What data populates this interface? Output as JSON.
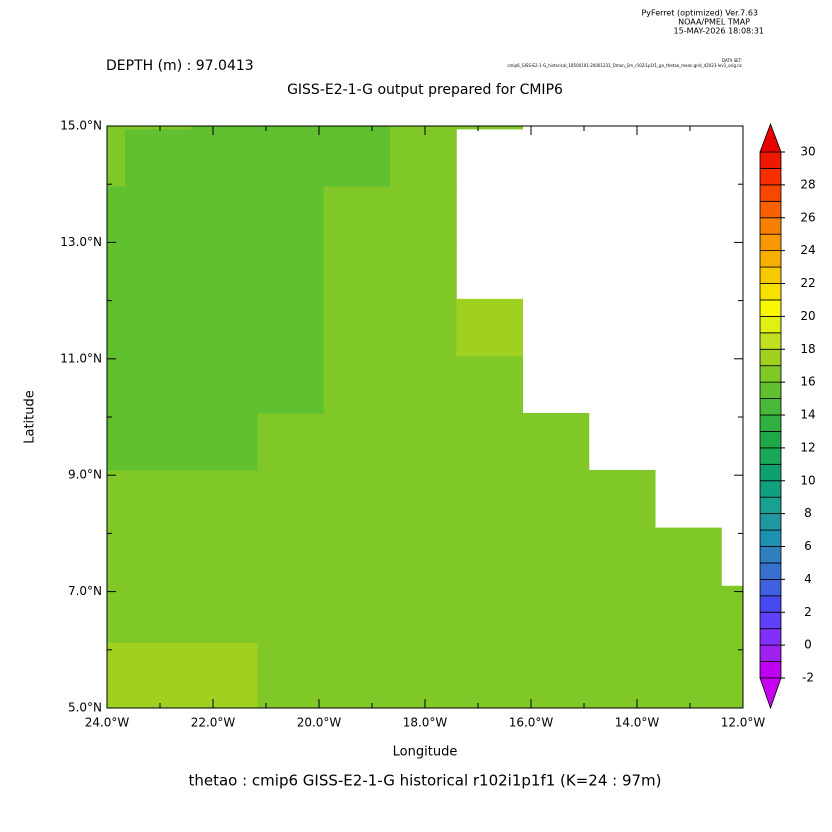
{
  "chart_data": {
    "type": "shade",
    "header": [
      "PyFerret (optimized) Ver.7.63",
      "NOAA/PMEL TMAP",
      "15-MAY-2026 18:08:31"
    ],
    "subtitle": "DEPTH (m) : 97.0413",
    "dataset_label": "DATA SET:",
    "dataset": "cmip6_GISS-E2-1-G_historical_18500101-20001231_Omon_1m_r102i1p1f1_gn_thetao_mean.grid_d2023-lev1_orig.nc",
    "title": "GISS-E2-1-G output prepared for CMIP6",
    "xlabel": "Longitude",
    "ylabel": "Latitude",
    "caption": "thetao : cmip6 GISS-E2-1-G historical r102i1p1f1    (K=24 : 97m)",
    "xlim": [
      -24,
      -12
    ],
    "ylim": [
      5,
      15
    ],
    "xticks": [
      {
        "value": -24,
        "label": "24.0°W"
      },
      {
        "value": -22,
        "label": "22.0°W"
      },
      {
        "value": -20,
        "label": "20.0°W"
      },
      {
        "value": -18,
        "label": "18.0°W"
      },
      {
        "value": -16,
        "label": "16.0°W"
      },
      {
        "value": -14,
        "label": "14.0°W"
      },
      {
        "value": -12,
        "label": "12.0°W"
      }
    ],
    "xminor": [
      -23,
      -21,
      -19,
      -17,
      -15,
      -13
    ],
    "yticks": [
      {
        "value": 5,
        "label": "5.0°N"
      },
      {
        "value": 7,
        "label": "7.0°N"
      },
      {
        "value": 9,
        "label": "9.0°N"
      },
      {
        "value": 11,
        "label": "11.0°N"
      },
      {
        "value": 13,
        "label": "13.0°N"
      },
      {
        "value": 15,
        "label": "15.0°N"
      }
    ],
    "yminor": [
      6,
      8,
      10,
      12,
      14
    ],
    "lon_edges": [
      -24,
      -23.66,
      -22.41,
      -21.16,
      -19.91,
      -18.66,
      -17.41,
      -16.16,
      -14.91,
      -13.66,
      -12.41,
      -12
    ],
    "lat_edges": [
      5,
      5.14,
      6.13,
      7.1,
      8.1,
      9.09,
      10.07,
      11.05,
      12.03,
      13.0,
      13.97,
      14.95,
      15
    ],
    "values": [
      [
        17.5,
        17.5,
        17.5,
        16.5,
        16.5,
        16.5,
        16.5,
        16.5,
        16.5,
        16.5,
        16.5
      ],
      [
        17.5,
        17.5,
        17.5,
        16.5,
        16.5,
        16.5,
        16.5,
        16.5,
        16.5,
        16.5,
        16.5
      ],
      [
        16.5,
        16.5,
        16.5,
        16.5,
        16.5,
        16.5,
        16.5,
        16.5,
        16.5,
        16.5,
        16.5
      ],
      [
        16.5,
        16.5,
        16.5,
        16.5,
        16.5,
        16.5,
        16.5,
        16.5,
        16.5,
        16.5,
        null
      ],
      [
        16.5,
        16.5,
        16.5,
        16.5,
        16.5,
        16.5,
        16.5,
        16.5,
        16.5,
        null,
        null
      ],
      [
        15.5,
        15.5,
        15.5,
        16.5,
        16.5,
        16.5,
        16.5,
        16.5,
        null,
        null,
        null
      ],
      [
        15.5,
        15.5,
        15.5,
        15.5,
        16.5,
        16.5,
        16.5,
        null,
        null,
        null,
        null
      ],
      [
        15.5,
        15.5,
        15.5,
        15.5,
        16.5,
        16.5,
        17.5,
        null,
        null,
        null,
        null
      ],
      [
        15.5,
        15.5,
        15.5,
        15.5,
        16.5,
        16.5,
        null,
        null,
        null,
        null,
        null
      ],
      [
        15.5,
        15.5,
        15.5,
        15.5,
        16.5,
        16.5,
        null,
        null,
        null,
        null,
        null
      ],
      [
        16.5,
        15.5,
        15.5,
        15.5,
        15.5,
        16.5,
        null,
        null,
        null,
        null,
        null
      ],
      [
        16.5,
        16.5,
        15.5,
        15.5,
        15.5,
        16.5,
        16.5,
        null,
        null,
        null,
        null
      ]
    ],
    "clim": [
      -2,
      30
    ],
    "colorbar_ticks": [
      -2,
      0,
      2,
      4,
      6,
      8,
      10,
      12,
      14,
      16,
      18,
      20,
      22,
      24,
      26,
      28,
      30
    ],
    "colors": [
      "#c000f0",
      "#a020f0",
      "#8030f8",
      "#6040f8",
      "#4848f0",
      "#4060e0",
      "#3870d0",
      "#3080c0",
      "#2090b0",
      "#2098a0",
      "#18a090",
      "#10a080",
      "#10a070",
      "#18a858",
      "#20a848",
      "#30b040",
      "#48b838",
      "#60c030",
      "#80c828",
      "#a0d020",
      "#c0e020",
      "#e0f010",
      "#f8f800",
      "#f8e000",
      "#f8c800",
      "#f8b000",
      "#f89800",
      "#f88000",
      "#f86000",
      "#f84800",
      "#f83000",
      "#f01800"
    ],
    "under_color": "#c800f0",
    "over_color": "#e80000"
  }
}
